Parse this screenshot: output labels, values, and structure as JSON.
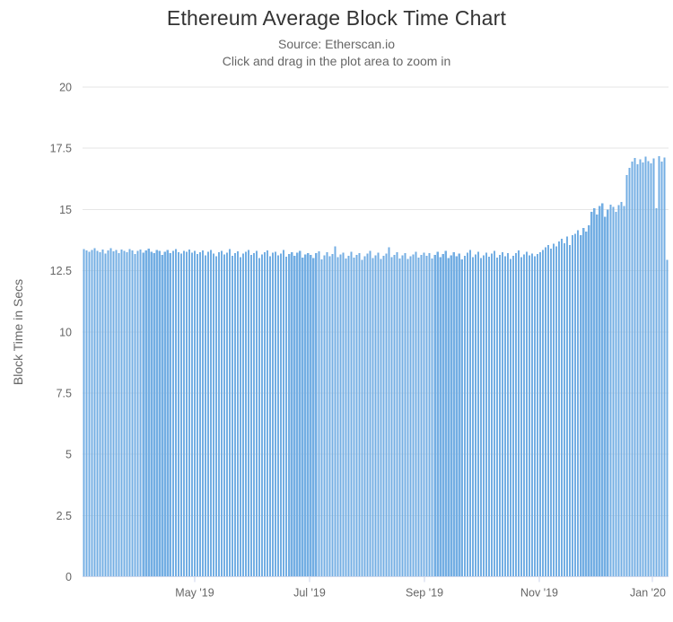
{
  "chart_data": {
    "type": "bar",
    "title": "Ethereum Average Block Time Chart",
    "subtitle_source": "Source: Etherscan.io",
    "subtitle_hint": "Click and drag in the plot area to zoom in",
    "xlabel": "",
    "ylabel": "Block Time in Secs",
    "ylim": [
      0,
      20
    ],
    "yticks": [
      0,
      2.5,
      5,
      7.5,
      10,
      12.5,
      15,
      17.5,
      20
    ],
    "x_ticks": [
      {
        "label": "May '19",
        "pos": 0.1914
      },
      {
        "label": "Jul '19",
        "pos": 0.3874
      },
      {
        "label": "Sep '19",
        "pos": 0.5835
      },
      {
        "label": "Nov '19",
        "pos": 0.7795
      },
      {
        "label": "Jan '20",
        "pos": 0.9724
      }
    ],
    "grid": true,
    "legend": false,
    "colors": {
      "bar": "#73aee3",
      "grid": "#e6e6e6",
      "axis": "#ccd6eb",
      "label": "#666666",
      "title": "#333333"
    },
    "values": [
      13.38,
      13.32,
      13.28,
      13.35,
      13.42,
      13.3,
      13.25,
      13.36,
      13.2,
      13.33,
      13.41,
      13.29,
      13.34,
      13.22,
      13.37,
      13.31,
      13.26,
      13.39,
      13.33,
      13.18,
      13.3,
      13.36,
      13.24,
      13.32,
      13.4,
      13.28,
      13.21,
      13.35,
      13.3,
      13.15,
      13.27,
      13.34,
      13.22,
      13.3,
      13.38,
      13.25,
      13.19,
      13.31,
      13.28,
      13.36,
      13.23,
      13.3,
      13.18,
      13.25,
      13.33,
      13.12,
      13.28,
      13.35,
      13.2,
      13.08,
      13.26,
      13.31,
      13.16,
      13.24,
      13.38,
      13.1,
      13.22,
      13.29,
      13.05,
      13.19,
      13.27,
      13.34,
      13.14,
      13.21,
      13.3,
      13.02,
      13.17,
      13.25,
      13.32,
      13.09,
      13.23,
      13.28,
      13.13,
      13.2,
      13.35,
      13.07,
      13.18,
      13.26,
      13.11,
      13.24,
      13.31,
      13.04,
      13.16,
      13.22,
      13.15,
      13.02,
      13.21,
      13.29,
      12.96,
      13.12,
      13.25,
      13.08,
      13.18,
      13.5,
      13.05,
      13.16,
      13.24,
      12.99,
      13.11,
      13.27,
      13.03,
      13.14,
      13.22,
      12.95,
      13.09,
      13.19,
      13.3,
      13.01,
      13.13,
      13.23,
      12.98,
      13.1,
      13.2,
      13.46,
      13.06,
      13.15,
      13.26,
      13.0,
      13.12,
      13.21,
      12.97,
      13.08,
      13.17,
      13.28,
      13.04,
      13.14,
      13.24,
      13.1,
      13.22,
      12.99,
      13.15,
      13.27,
      13.05,
      13.18,
      13.31,
      13.02,
      13.13,
      13.25,
      13.08,
      13.2,
      12.96,
      13.11,
      13.23,
      13.34,
      13.06,
      13.17,
      13.28,
      13.01,
      13.12,
      13.24,
      13.07,
      13.19,
      13.3,
      13.03,
      13.14,
      13.26,
      13.09,
      13.21,
      12.98,
      13.1,
      13.22,
      13.33,
      13.05,
      13.16,
      13.27,
      13.12,
      13.2,
      13.08,
      13.18,
      13.25,
      13.35,
      13.45,
      13.55,
      13.4,
      13.6,
      13.5,
      13.7,
      13.8,
      13.62,
      13.9,
      13.55,
      13.95,
      14.0,
      14.15,
      13.95,
      14.25,
      14.1,
      14.35,
      14.9,
      15.05,
      14.8,
      15.15,
      15.25,
      14.7,
      15.0,
      15.2,
      15.1,
      14.9,
      15.18,
      15.3,
      15.15,
      16.4,
      16.7,
      16.95,
      17.1,
      16.85,
      17.05,
      16.92,
      17.15,
      16.98,
      16.88,
      17.08,
      15.05,
      17.18,
      16.96,
      17.12,
      12.95
    ]
  }
}
